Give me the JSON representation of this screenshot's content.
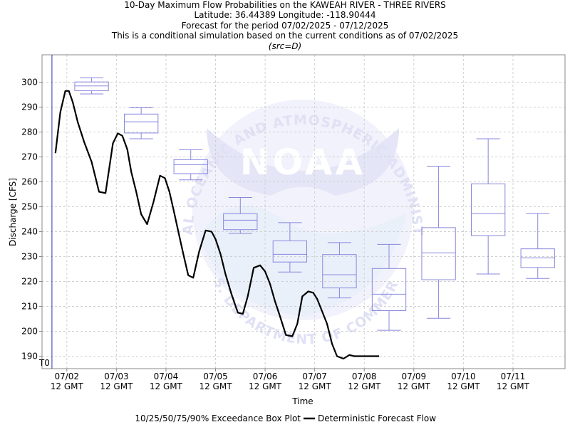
{
  "titles": {
    "line1": "10-Day Maximum Flow Probabilities on the KAWEAH RIVER - THREE RIVERS",
    "line2": "Latitude: 36.44389 Longitude: -118.90444",
    "line3": "Forecast for the period 07/02/2025 - 07/12/2025",
    "line4": "This is a conditional simulation based on the current conditions as of 07/02/2025",
    "line5": "(src=D)"
  },
  "watermark": {
    "logo_text": "NOAA",
    "upper_arc": "NATIONAL OCEANIC AND ATMOSPHERIC ADMINISTRATION",
    "lower_arc": "U.S. DEPARTMENT OF COMMERCE"
  },
  "chart_data": {
    "type": "box",
    "xlabel": "Time",
    "ylabel": "Discharge [CFS]",
    "ylim": [
      185,
      311
    ],
    "xlim": [
      -0.5,
      10.05
    ],
    "yticks": [
      190,
      200,
      210,
      220,
      230,
      240,
      250,
      260,
      270,
      280,
      290,
      300
    ],
    "xticks": [
      {
        "line1": "07/02",
        "line2": "12 GMT"
      },
      {
        "line1": "07/03",
        "line2": "12 GMT"
      },
      {
        "line1": "07/04",
        "line2": "12 GMT"
      },
      {
        "line1": "07/05",
        "line2": "12 GMT"
      },
      {
        "line1": "07/06",
        "line2": "12 GMT"
      },
      {
        "line1": "07/07",
        "line2": "12 GMT"
      },
      {
        "line1": "07/08",
        "line2": "12 GMT"
      },
      {
        "line1": "07/09",
        "line2": "12 GMT"
      },
      {
        "line1": "07/10",
        "line2": "12 GMT"
      },
      {
        "line1": "07/11",
        "line2": "12 GMT"
      }
    ],
    "t0_label": "T0",
    "t0_x": -0.3,
    "grid": true,
    "box_plots": [
      {
        "x": 0.5,
        "p10": 295.3,
        "p25": 296.6,
        "p50": 298.5,
        "p75": 300.1,
        "p90": 301.8
      },
      {
        "x": 1.5,
        "p10": 277.3,
        "p25": 279.6,
        "p50": 284.1,
        "p75": 287.2,
        "p90": 289.7
      },
      {
        "x": 2.5,
        "p10": 260.8,
        "p25": 263.3,
        "p50": 266.9,
        "p75": 268.9,
        "p90": 272.9
      },
      {
        "x": 3.5,
        "p10": 239.3,
        "p25": 240.8,
        "p50": 244.6,
        "p75": 247.2,
        "p90": 253.7
      },
      {
        "x": 4.5,
        "p10": 223.8,
        "p25": 227.8,
        "p50": 230.9,
        "p75": 236.3,
        "p90": 243.6
      },
      {
        "x": 5.5,
        "p10": 213.4,
        "p25": 217.4,
        "p50": 222.7,
        "p75": 230.8,
        "p90": 235.6
      },
      {
        "x": 6.5,
        "p10": 200.4,
        "p25": 208.3,
        "p50": 214.9,
        "p75": 225.2,
        "p90": 234.9
      },
      {
        "x": 7.5,
        "p10": 205.2,
        "p25": 220.7,
        "p50": 231.5,
        "p75": 241.6,
        "p90": 266.3
      },
      {
        "x": 8.5,
        "p10": 223.0,
        "p25": 238.4,
        "p50": 247.2,
        "p75": 259.2,
        "p90": 277.3
      },
      {
        "x": 9.5,
        "p10": 221.2,
        "p25": 225.6,
        "p50": 229.5,
        "p75": 233.1,
        "p90": 247.3
      }
    ],
    "deterministic": {
      "x": [
        -0.23,
        -0.13,
        -0.03,
        0.04,
        0.12,
        0.22,
        0.35,
        0.5,
        0.65,
        0.78,
        0.86,
        0.93,
        1.03,
        1.12,
        1.22,
        1.3,
        1.4,
        1.5,
        1.62,
        1.75,
        1.88,
        1.98,
        2.07,
        2.15,
        2.25,
        2.35,
        2.45,
        2.55,
        2.67,
        2.8,
        2.92,
        3.0,
        3.1,
        3.2,
        3.32,
        3.45,
        3.55,
        3.65,
        3.77,
        3.9,
        4.0,
        4.1,
        4.2,
        4.3,
        4.42,
        4.55,
        4.65,
        4.75,
        4.87,
        4.97,
        5.05,
        5.13,
        5.25,
        5.35,
        5.45,
        5.58,
        5.7,
        5.8,
        5.9,
        6.0,
        6.1,
        6.2,
        6.3
      ],
      "y": [
        271.5,
        288,
        296.5,
        296.5,
        292,
        284,
        276,
        268,
        256,
        255.5,
        266,
        275.5,
        279.5,
        278.5,
        273,
        264,
        256,
        247,
        243,
        252,
        262.5,
        261.5,
        256,
        249,
        240,
        231,
        222.5,
        221.5,
        232,
        240.5,
        240,
        237,
        231,
        223,
        215,
        207.5,
        207,
        214,
        225.5,
        226.5,
        224,
        219,
        212,
        206,
        198.5,
        198,
        203,
        214,
        216,
        215.5,
        213,
        209,
        203,
        195,
        190,
        189,
        190.5,
        190,
        190,
        190,
        190,
        190,
        190
      ]
    },
    "legend": [
      {
        "label": "10/25/50/75/90% Exceedance Box Plot"
      },
      {
        "label": "Deterministic Forecast Flow"
      }
    ],
    "colors": {
      "box": "#8888dd",
      "line": "#000000",
      "t0": "#3333aa",
      "grid": "#d0d0d0",
      "watermark": "#d8d8f5"
    }
  }
}
